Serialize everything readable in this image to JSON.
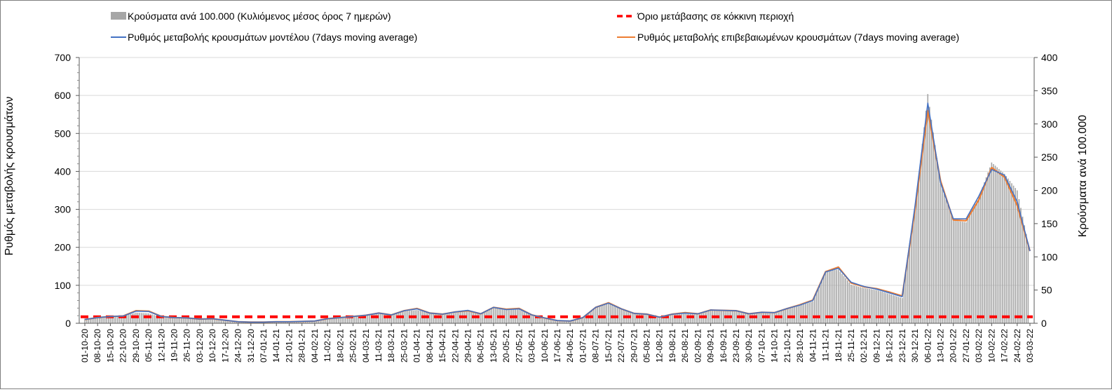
{
  "chart_data": {
    "type": "bar+line",
    "legend": {
      "placement": "top",
      "entries": [
        {
          "key": "cases",
          "label": "Κρούσματα ανά 100.000 (Κυλιόμενος μέσος όρος 7 ημερών)",
          "color": "#a6a6a6",
          "marker": "bar"
        },
        {
          "key": "threshold",
          "label": "Όριο μετάβασης σε κόκκινη περιοχή",
          "color": "#ff0000",
          "marker": "dashed-line"
        },
        {
          "key": "model",
          "label": "Ρυθμός μεταβολής κρουσμάτων μοντέλου (7days moving average)",
          "color": "#4472c4",
          "marker": "line"
        },
        {
          "key": "confirmed",
          "label": "Ρυθμός μεταβολής επιβεβαιωμένων κρουσμάτων (7days moving average)",
          "color": "#ed7d31",
          "marker": "line"
        }
      ]
    },
    "y_left": {
      "label": "Ρυθμός μεταβολής κρουσμάτων",
      "range": [
        0,
        700
      ],
      "ticks": [
        "0",
        "100",
        "200",
        "300",
        "400",
        "500",
        "600",
        "700"
      ]
    },
    "y_right": {
      "label": "Κρούσματα ανά 100.000",
      "range": [
        0,
        400
      ],
      "ticks": [
        "0",
        "50",
        "100",
        "150",
        "200",
        "250",
        "300",
        "350",
        "400"
      ]
    },
    "x_ticks": [
      "01-10-20",
      "08-10-20",
      "15-10-20",
      "22-10-20",
      "29-10-20",
      "05-11-20",
      "12-11-20",
      "19-11-20",
      "26-11-20",
      "03-12-20",
      "10-12-20",
      "17-12-20",
      "24-12-20",
      "31-12-20",
      "07-01-21",
      "14-01-21",
      "21-01-21",
      "28-01-21",
      "04-02-21",
      "11-02-21",
      "18-02-21",
      "25-02-21",
      "04-03-21",
      "11-03-21",
      "18-03-21",
      "25-03-21",
      "01-04-21",
      "08-04-21",
      "15-04-21",
      "22-04-21",
      "29-04-21",
      "06-05-21",
      "13-05-21",
      "20-05-21",
      "27-05-21",
      "03-06-21",
      "10-06-21",
      "17-06-21",
      "24-06-21",
      "01-07-21",
      "08-07-21",
      "15-07-21",
      "22-07-21",
      "29-07-21",
      "05-08-21",
      "12-08-21",
      "19-08-21",
      "26-08-21",
      "02-09-21",
      "09-09-21",
      "16-09-21",
      "23-09-21",
      "30-09-21",
      "07-10-21",
      "14-10-21",
      "21-10-21",
      "28-10-21",
      "04-11-21",
      "11-11-21",
      "18-11-21",
      "25-11-21",
      "02-12-21",
      "09-12-21",
      "16-12-21",
      "23-12-21",
      "30-12-21",
      "06-01-22",
      "13-01-22",
      "20-01-22",
      "27-01-22",
      "03-02-22",
      "10-02-22",
      "17-02-22",
      "24-02-22",
      "03-03-22"
    ],
    "grid": "horizontal",
    "threshold_value": 17,
    "weekly_model_rate": [
      10,
      15,
      18,
      19,
      32,
      31,
      18,
      15,
      14,
      11,
      12,
      8,
      4,
      3,
      3,
      4,
      4,
      5,
      6,
      12,
      15,
      18,
      21,
      27,
      22,
      33,
      38,
      27,
      24,
      30,
      34,
      25,
      42,
      36,
      38,
      22,
      14,
      7,
      6,
      15,
      42,
      53,
      38,
      26,
      24,
      16,
      24,
      27,
      25,
      35,
      34,
      33,
      25,
      29,
      28,
      39,
      48,
      60,
      135,
      145,
      108,
      97,
      90,
      80,
      70,
      310,
      580,
      370,
      275,
      275,
      335,
      405,
      390,
      320,
      190
    ],
    "weekly_confirmed_rate": [
      10,
      15,
      18,
      19,
      33,
      32,
      18,
      15,
      14,
      11,
      12,
      8,
      4,
      3,
      3,
      4,
      4,
      5,
      6,
      12,
      15,
      18,
      21,
      27,
      22,
      33,
      39,
      27,
      24,
      30,
      33,
      25,
      42,
      37,
      39,
      22,
      14,
      7,
      6,
      15,
      42,
      54,
      38,
      26,
      24,
      16,
      24,
      28,
      25,
      35,
      34,
      33,
      25,
      29,
      28,
      39,
      49,
      61,
      136,
      148,
      106,
      96,
      91,
      82,
      72,
      300,
      560,
      375,
      272,
      270,
      325,
      410,
      385,
      310,
      190
    ],
    "weekly_cases_per_100k": [
      7,
      8,
      9,
      11,
      16,
      15,
      9,
      8,
      7,
      6,
      6,
      4,
      2,
      2,
      2,
      2,
      2,
      3,
      4,
      6,
      8,
      10,
      12,
      14,
      12,
      18,
      20,
      16,
      13,
      16,
      18,
      14,
      23,
      20,
      21,
      12,
      8,
      4,
      3,
      8,
      24,
      30,
      21,
      15,
      13,
      9,
      13,
      15,
      14,
      19,
      20,
      19,
      14,
      16,
      17,
      22,
      27,
      33,
      78,
      81,
      58,
      53,
      50,
      44,
      38,
      170,
      345,
      210,
      155,
      152,
      190,
      242,
      225,
      200,
      108
    ]
  }
}
